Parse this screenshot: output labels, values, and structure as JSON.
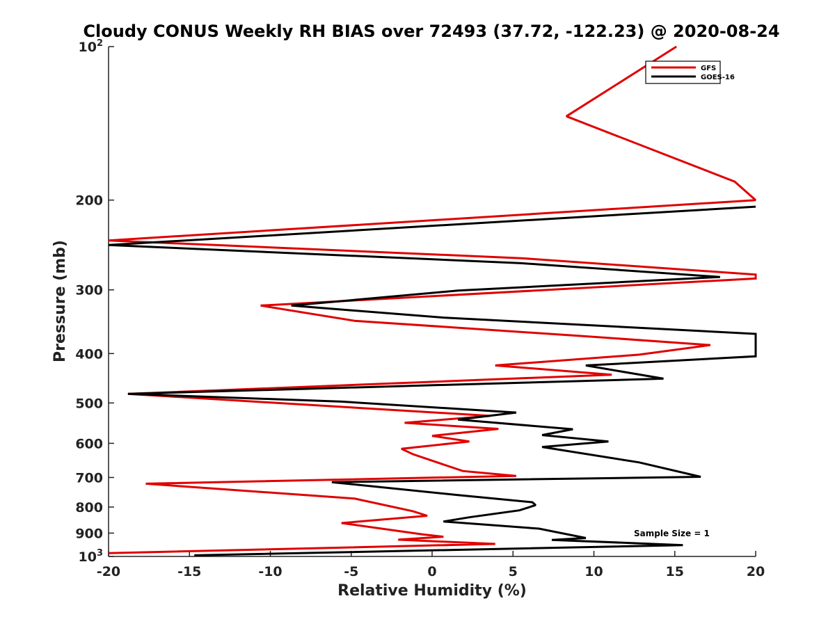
{
  "chart_data": {
    "type": "line",
    "title": "Cloudy CONUS Weekly RH BIAS over 72493 (37.72, -122.23) @ 2020-08-24",
    "xlabel": "Relative Humidity (%)",
    "ylabel": "Pressure (mb)",
    "xlim": [
      -20,
      20
    ],
    "ylim": [
      100,
      1000
    ],
    "y_scale": "log",
    "y_reversed": true,
    "grid": false,
    "legend_position": "top-right",
    "annotation": "Sample Size = 1",
    "x_ticks": [
      {
        "value": -20,
        "label": "-20"
      },
      {
        "value": -15,
        "label": "-15"
      },
      {
        "value": -10,
        "label": "-10"
      },
      {
        "value": -5,
        "label": "-5"
      },
      {
        "value": 0,
        "label": "0"
      },
      {
        "value": 5,
        "label": "5"
      },
      {
        "value": 10,
        "label": "10"
      },
      {
        "value": 15,
        "label": "15"
      },
      {
        "value": 20,
        "label": "20"
      }
    ],
    "y_ticks": [
      {
        "value": 100,
        "label": "10",
        "sup": "2"
      },
      {
        "value": 200,
        "label": "200",
        "sup": ""
      },
      {
        "value": 300,
        "label": "300",
        "sup": ""
      },
      {
        "value": 400,
        "label": "400",
        "sup": ""
      },
      {
        "value": 500,
        "label": "500",
        "sup": ""
      },
      {
        "value": 600,
        "label": "600",
        "sup": ""
      },
      {
        "value": 700,
        "label": "700",
        "sup": ""
      },
      {
        "value": 800,
        "label": "800",
        "sup": ""
      },
      {
        "value": 900,
        "label": "900",
        "sup": ""
      },
      {
        "value": 1000,
        "label": "10",
        "sup": "3"
      }
    ],
    "series": [
      {
        "name": "GFS",
        "color": "#e00000",
        "points": [
          [
            15.1,
            100
          ],
          [
            8.3,
            137
          ],
          [
            18.7,
            184
          ],
          [
            20.0,
            200
          ],
          [
            -20.0,
            240
          ],
          [
            5.5,
            260
          ],
          [
            20.0,
            280
          ],
          [
            20.0,
            285
          ],
          [
            -10.6,
            322
          ],
          [
            -4.8,
            345
          ],
          [
            9.5,
            370
          ],
          [
            17.2,
            385
          ],
          [
            12.8,
            402
          ],
          [
            3.9,
            422
          ],
          [
            11.1,
            440
          ],
          [
            -18.8,
            480
          ],
          [
            3.6,
            530
          ],
          [
            -1.7,
            547
          ],
          [
            4.1,
            562
          ],
          [
            0.0,
            580
          ],
          [
            2.3,
            595
          ],
          [
            -1.9,
            615
          ],
          [
            -1.2,
            630
          ],
          [
            1.9,
            680
          ],
          [
            5.2,
            695
          ],
          [
            -17.7,
            720
          ],
          [
            -4.8,
            770
          ],
          [
            -1.2,
            815
          ],
          [
            -0.3,
            832
          ],
          [
            -5.6,
            860
          ],
          [
            -0.6,
            905
          ],
          [
            0.7,
            915
          ],
          [
            -2.1,
            927
          ],
          [
            3.9,
            945
          ],
          [
            -20.0,
            985
          ]
        ]
      },
      {
        "name": "GOES-16",
        "color": "#000000",
        "points": [
          [
            20.0,
            206
          ],
          [
            -20.0,
            245
          ],
          [
            5.5,
            266
          ],
          [
            17.8,
            283
          ],
          [
            1.6,
            301
          ],
          [
            -8.7,
            322
          ],
          [
            0.7,
            340
          ],
          [
            20.0,
            366
          ],
          [
            20.0,
            405
          ],
          [
            9.5,
            422
          ],
          [
            14.3,
            448
          ],
          [
            -18.8,
            480
          ],
          [
            -5.6,
            497
          ],
          [
            5.2,
            522
          ],
          [
            1.6,
            539
          ],
          [
            8.7,
            563
          ],
          [
            6.8,
            578
          ],
          [
            10.9,
            595
          ],
          [
            6.8,
            610
          ],
          [
            12.8,
            654
          ],
          [
            16.6,
            698
          ],
          [
            -6.2,
            715
          ],
          [
            1.6,
            758
          ],
          [
            6.2,
            783
          ],
          [
            6.4,
            793
          ],
          [
            5.4,
            812
          ],
          [
            2.3,
            838
          ],
          [
            0.7,
            854
          ],
          [
            6.6,
            882
          ],
          [
            9.5,
            920
          ],
          [
            7.4,
            928
          ],
          [
            15.5,
            950
          ],
          [
            -14.7,
            995
          ]
        ]
      }
    ]
  }
}
